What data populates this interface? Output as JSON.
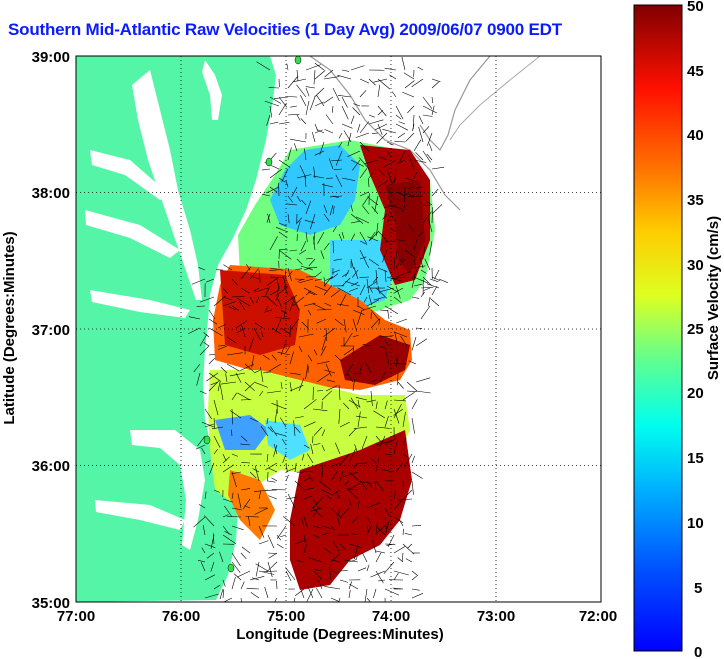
{
  "title": "Southern Mid-Atlantic Raw Velocities (1 Day Avg) 2009/06/07 0900 EDT",
  "xaxis": {
    "label": "Longitude (Degrees:Minutes)",
    "ticks": [
      "77:00",
      "76:00",
      "75:00",
      "74:00",
      "73:00",
      "72:00"
    ]
  },
  "yaxis": {
    "label": "Latitude (Degrees:Minutes)",
    "ticks": [
      "39:00",
      "38:00",
      "37:00",
      "36:00",
      "35:00"
    ]
  },
  "colorbar": {
    "label": "Surface Velocity (cm/s)",
    "ticks": [
      "50",
      "45",
      "40",
      "35",
      "30",
      "25",
      "20",
      "15",
      "10",
      "5",
      "0"
    ],
    "min": 0,
    "max": 50,
    "colormap": "jet"
  },
  "colors": {
    "land": "#55f5a8",
    "title": "#0a1cff",
    "station_marker": "#2fe04a"
  }
}
